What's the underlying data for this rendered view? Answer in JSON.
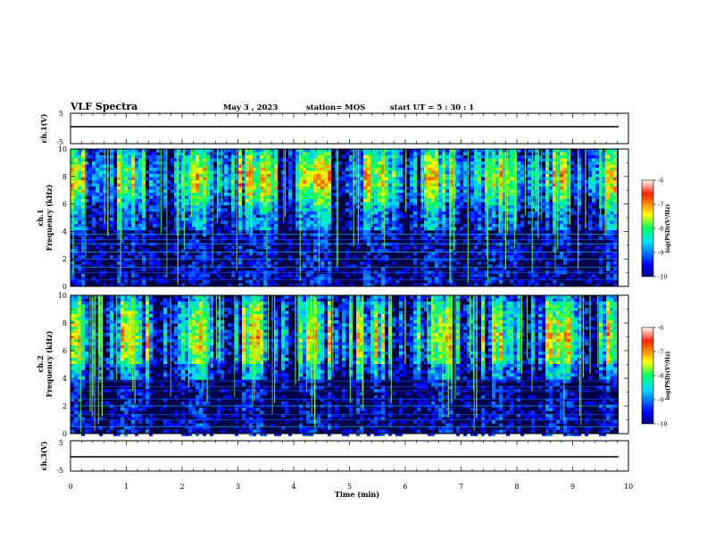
{
  "header": {
    "title": "VLF Spectra",
    "date": "May 3 , 2023",
    "station": "station= MOS",
    "start": "start  UT =   5 : 30 : 1"
  },
  "chart_data": [
    {
      "type": "line",
      "id": "ch1-voltage",
      "ylabel": "ch.1(V)",
      "ylim": [
        -5,
        5
      ],
      "yticks": [
        "5",
        "-5"
      ],
      "series": [
        {
          "x": [
            0,
            9.82
          ],
          "values": [
            0,
            0
          ]
        }
      ]
    },
    {
      "type": "heatmap",
      "id": "ch1-spectrogram",
      "ylabel": "Frequency (kHz)",
      "ylabel2": "ch.1",
      "ylim": [
        0,
        10
      ],
      "yticks": [
        "0",
        "2",
        "4",
        "6",
        "8",
        "10"
      ],
      "colorbar": {
        "label": "log(PSD)(V²/Hz)",
        "range": [
          -10,
          -6
        ],
        "ticks": [
          "-6",
          "-7",
          "-8",
          "-9",
          "-10"
        ]
      }
    },
    {
      "type": "heatmap",
      "id": "ch2-spectrogram",
      "ylabel": "Frequency (kHz)",
      "ylabel2": "ch.2",
      "ylim": [
        0,
        10
      ],
      "yticks": [
        "0",
        "2",
        "4",
        "6",
        "8",
        "10"
      ],
      "colorbar": {
        "label": "log(PSD)(V²/Hz)",
        "range": [
          -10,
          -6
        ],
        "ticks": [
          "-6",
          "-7",
          "-8",
          "-9",
          "-10"
        ]
      }
    },
    {
      "type": "line",
      "id": "ch3-voltage",
      "ylabel": "ch.3(V)",
      "ylim": [
        -5,
        5
      ],
      "yticks": [
        "5",
        "-5"
      ],
      "series": [
        {
          "x": [
            0,
            9.82
          ],
          "values": [
            0,
            0
          ]
        }
      ]
    }
  ],
  "xaxis": {
    "label": "Time  (min)",
    "xlim": [
      0,
      10
    ],
    "ticks": [
      "0",
      "1",
      "2",
      "3",
      "4",
      "5",
      "6",
      "7",
      "8",
      "9",
      "10"
    ]
  }
}
